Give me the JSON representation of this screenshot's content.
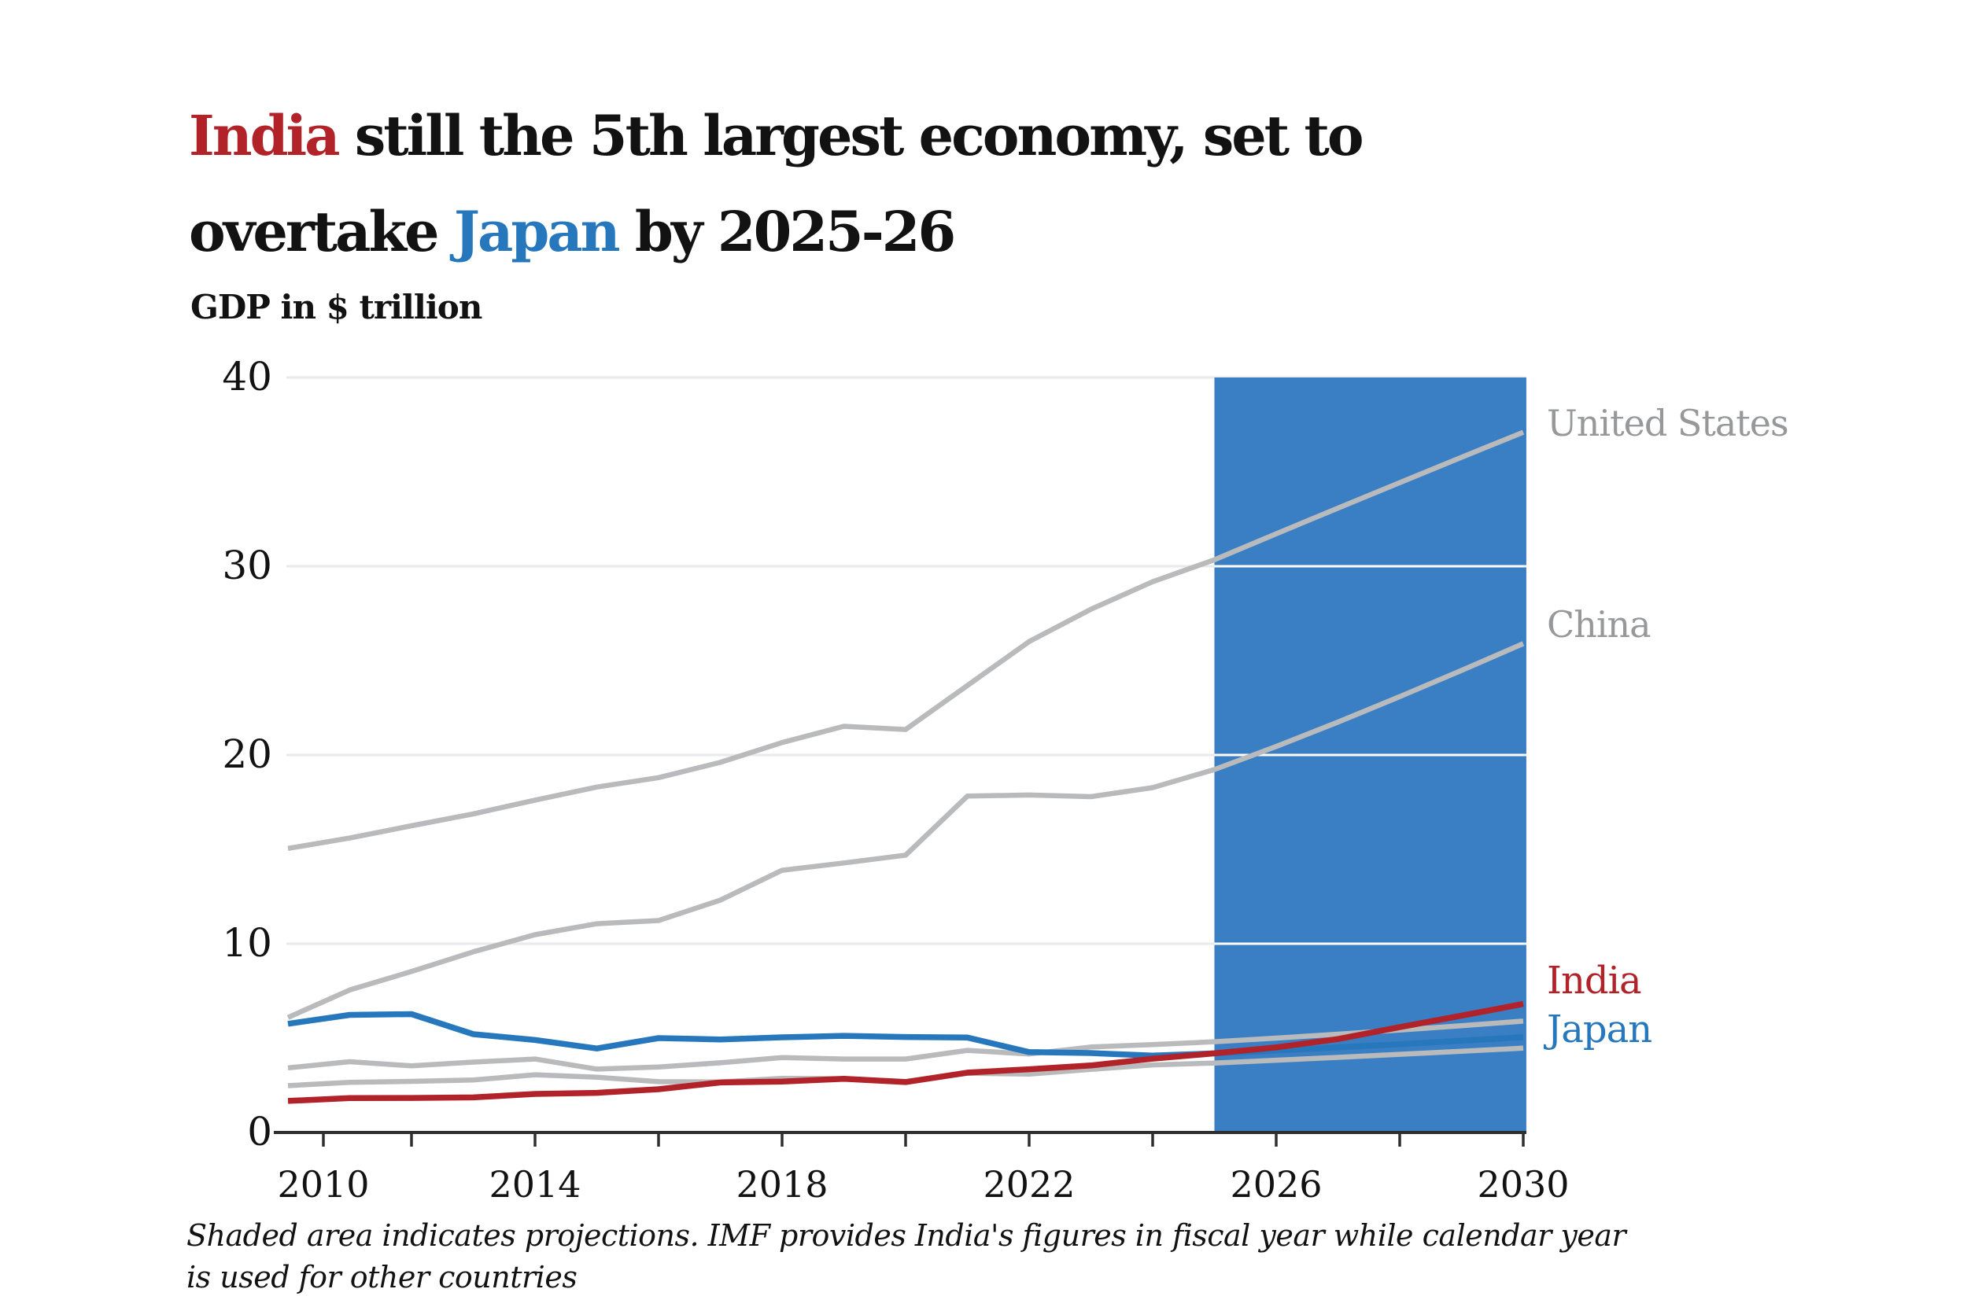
{
  "title": {
    "line1_red": "India",
    "line1_rest": " still the 5th largest economy, set to",
    "line2_start": "overtake ",
    "line2_blue": "Japan",
    "line2_end": " by 2025-26"
  },
  "subtitle": "GDP in $ trillion",
  "footnote": {
    "line1": "Shaded area indicates projections. IMF provides India's figures in fiscal year while calendar year",
    "line2": "is used for other countries"
  },
  "chart_data": {
    "type": "line",
    "title": "India still the 5th largest economy, set to overtake Japan by 2025-26",
    "ylabel": "GDP in $ trillion",
    "x": [
      2010,
      2011,
      2012,
      2013,
      2014,
      2015,
      2016,
      2017,
      2018,
      2019,
      2020,
      2021,
      2022,
      2023,
      2024,
      2025,
      2026,
      2027,
      2028,
      2029,
      2030
    ],
    "xlim": [
      2010,
      2030.05
    ],
    "ylim": [
      0,
      40
    ],
    "grid": "horizontal",
    "legend_position": "right-edge-direct-labels",
    "x_axis": {
      "tick_years": [
        2010,
        2012,
        2014,
        2016,
        2018,
        2020,
        2022,
        2024,
        2026,
        2028,
        2030
      ],
      "labeled_years": [
        2010,
        2014,
        2018,
        2022,
        2026,
        2030
      ]
    },
    "y_axis": {
      "tick_values": [
        0,
        10,
        20,
        30,
        40
      ]
    },
    "projection_region": {
      "start_year": 2025,
      "end_year": 2030.05,
      "fill": "#3a7ec4",
      "note": "Shaded area indicates projections"
    },
    "series": [
      {
        "name": "united-states",
        "label": "United States",
        "color": "#b9babc",
        "label_color": "#97989a",
        "values": [
          15.05,
          15.6,
          16.25,
          16.88,
          17.61,
          18.3,
          18.8,
          19.61,
          20.66,
          21.52,
          21.35,
          23.68,
          26.01,
          27.72,
          29.18,
          30.34,
          31.72,
          33.08,
          34.43,
          35.77,
          37.1
        ]
      },
      {
        "name": "china",
        "label": "China",
        "color": "#b9babc",
        "label_color": "#97989a",
        "values": [
          6.09,
          7.55,
          8.53,
          9.57,
          10.48,
          11.06,
          11.23,
          12.31,
          13.89,
          14.28,
          14.69,
          17.82,
          17.88,
          17.79,
          18.27,
          19.23,
          20.45,
          21.74,
          23.09,
          24.48,
          25.9
        ]
      },
      {
        "name": "germany",
        "label": "",
        "color": "#b9babc",
        "label_color": "#97989a",
        "values": [
          3.42,
          3.75,
          3.53,
          3.73,
          3.89,
          3.36,
          3.47,
          3.69,
          3.97,
          3.89,
          3.89,
          4.35,
          4.16,
          4.53,
          4.66,
          4.81,
          5.0,
          5.21,
          5.43,
          5.66,
          5.9
        ]
      },
      {
        "name": "uk",
        "label": "",
        "color": "#b9babc",
        "label_color": "#97989a",
        "values": [
          2.48,
          2.66,
          2.71,
          2.78,
          3.06,
          2.93,
          2.69,
          2.68,
          2.87,
          2.85,
          2.7,
          3.14,
          3.09,
          3.34,
          3.58,
          3.68,
          3.83,
          3.98,
          4.14,
          4.3,
          4.47
        ]
      },
      {
        "name": "japan",
        "label": "Japan",
        "color": "#2777bd",
        "label_color": "#2777bd",
        "values": [
          5.76,
          6.23,
          6.27,
          5.21,
          4.9,
          4.45,
          5.0,
          4.93,
          5.04,
          5.12,
          5.06,
          5.03,
          4.26,
          4.21,
          4.07,
          4.19,
          4.34,
          4.51,
          4.68,
          4.86,
          5.05
        ]
      },
      {
        "name": "india",
        "label": "India",
        "color": "#b22229",
        "label_color": "#b22229",
        "values": [
          1.67,
          1.82,
          1.83,
          1.86,
          2.04,
          2.1,
          2.29,
          2.65,
          2.7,
          2.84,
          2.67,
          3.17,
          3.35,
          3.55,
          3.91,
          4.19,
          4.51,
          4.95,
          5.58,
          6.19,
          6.81
        ]
      }
    ],
    "colors": {
      "accent_red": "#b22229",
      "accent_blue": "#2777bd",
      "gray_line": "#b9babc",
      "gray_label": "#97989a",
      "gridline": "#eaeaec",
      "gridline_on_projection": "#ffffff",
      "axis": "#2e2e2e",
      "projection_fill": "#3a7ec4"
    }
  }
}
